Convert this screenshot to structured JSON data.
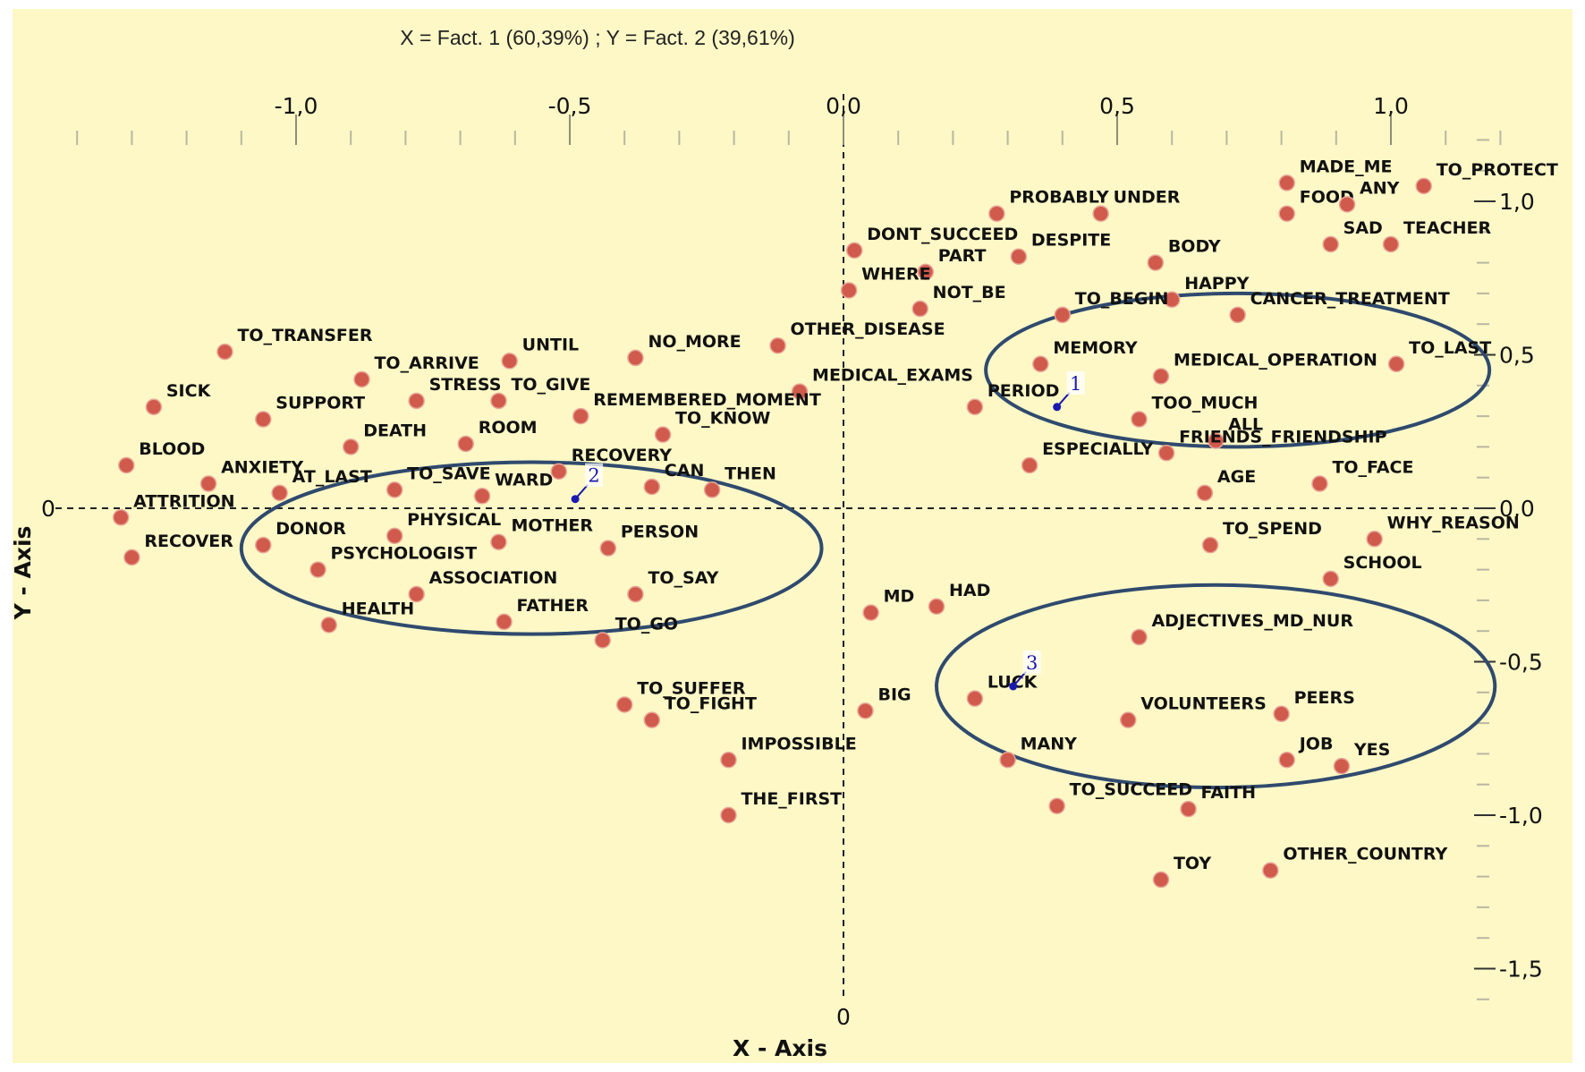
{
  "chart_data": {
    "type": "scatter",
    "title": "X = Fact. 1 (60,39%) ; Y = Fact. 2 (39,61%)",
    "xlabel": "X - Axis",
    "ylabel": "Y - Axis",
    "xlim": [
      -1.4,
      1.2
    ],
    "ylim": [
      -1.6,
      1.2
    ],
    "x_ticks": [
      {
        "value": -1.0,
        "label": "-1,0"
      },
      {
        "value": -0.5,
        "label": "-0,5"
      },
      {
        "value": 0.0,
        "label": "0,0"
      },
      {
        "value": 0.5,
        "label": "0,5"
      },
      {
        "value": 1.0,
        "label": "1,0"
      }
    ],
    "y_ticks": [
      {
        "value": 1.0,
        "label": "1,0"
      },
      {
        "value": 0.5,
        "label": "0,5"
      },
      {
        "value": 0.0,
        "label": "0,0"
      },
      {
        "value": -0.5,
        "label": "-0,5"
      },
      {
        "value": -1.0,
        "label": "-1,0"
      },
      {
        "value": -1.5,
        "label": "-1,5"
      }
    ],
    "origin_x_label": "0",
    "origin_y_label": "0",
    "grid": false,
    "colors": {
      "background": "#fdf8c6",
      "point": "#d05a4c",
      "centroid": "#1a1ab0",
      "ellipse": "#2f4a6e",
      "axis": "#222222"
    },
    "points": [
      {
        "label": "MADE_ME",
        "x": 0.81,
        "y": 1.06
      },
      {
        "label": "TO_PROTECT",
        "x": 1.06,
        "y": 1.05
      },
      {
        "label": "FOOD",
        "x": 0.81,
        "y": 0.96
      },
      {
        "label": "ANY",
        "x": 0.92,
        "y": 0.99
      },
      {
        "label": "PROBABLY",
        "x": 0.28,
        "y": 0.96
      },
      {
        "label": "UNDER",
        "x": 0.47,
        "y": 0.96
      },
      {
        "label": "SAD",
        "x": 0.89,
        "y": 0.86
      },
      {
        "label": "TEACHER",
        "x": 1.0,
        "y": 0.86
      },
      {
        "label": "DONT_SUCCEED",
        "x": 0.02,
        "y": 0.84
      },
      {
        "label": "DESPITE",
        "x": 0.32,
        "y": 0.82
      },
      {
        "label": "BODY",
        "x": 0.57,
        "y": 0.8
      },
      {
        "label": "PART",
        "x": 0.15,
        "y": 0.77
      },
      {
        "label": "HAPPY",
        "x": 0.6,
        "y": 0.68
      },
      {
        "label": "WHERE",
        "x": 0.01,
        "y": 0.71
      },
      {
        "label": "NOT_BE",
        "x": 0.14,
        "y": 0.65
      },
      {
        "label": "TO_BEGIN",
        "x": 0.4,
        "y": 0.63
      },
      {
        "label": "CANCER_TREATMENT",
        "x": 0.72,
        "y": 0.63
      },
      {
        "label": "TO_TRANSFER",
        "x": -1.13,
        "y": 0.51
      },
      {
        "label": "OTHER_DISEASE",
        "x": -0.12,
        "y": 0.53
      },
      {
        "label": "MEMORY",
        "x": 0.36,
        "y": 0.47
      },
      {
        "label": "TO_LAST",
        "x": 1.01,
        "y": 0.47
      },
      {
        "label": "NO_MORE",
        "x": -0.38,
        "y": 0.49
      },
      {
        "label": "UNTIL",
        "x": -0.61,
        "y": 0.48
      },
      {
        "label": "MEDICAL_OPERATION",
        "x": 0.58,
        "y": 0.43
      },
      {
        "label": "TO_ARRIVE",
        "x": -0.88,
        "y": 0.42
      },
      {
        "label": "MEDICAL_EXAMS",
        "x": -0.08,
        "y": 0.38
      },
      {
        "label": "SICK",
        "x": -1.26,
        "y": 0.33
      },
      {
        "label": "STRESS",
        "x": -0.78,
        "y": 0.35
      },
      {
        "label": "TO_GIVE",
        "x": -0.63,
        "y": 0.35
      },
      {
        "label": "PERIOD",
        "x": 0.24,
        "y": 0.33
      },
      {
        "label": "SUPPORT",
        "x": -1.06,
        "y": 0.29
      },
      {
        "label": "REMEMBERED_MOMENT",
        "x": -0.48,
        "y": 0.3
      },
      {
        "label": "TOO_MUCH",
        "x": 0.54,
        "y": 0.29
      },
      {
        "label": "TO_KNOW",
        "x": -0.33,
        "y": 0.24
      },
      {
        "label": "ALL",
        "x": 0.68,
        "y": 0.22
      },
      {
        "label": "DEATH",
        "x": -0.9,
        "y": 0.2
      },
      {
        "label": "ROOM",
        "x": -0.69,
        "y": 0.21
      },
      {
        "label": "FRIENDS_FRIENDSHIP",
        "x": 0.59,
        "y": 0.18
      },
      {
        "label": "BLOOD",
        "x": -1.31,
        "y": 0.14
      },
      {
        "label": "RECOVERY",
        "x": -0.52,
        "y": 0.12
      },
      {
        "label": "ESPECIALLY",
        "x": 0.34,
        "y": 0.14
      },
      {
        "label": "ANXIETY",
        "x": -1.16,
        "y": 0.08
      },
      {
        "label": "CAN",
        "x": -0.35,
        "y": 0.07
      },
      {
        "label": "THEN",
        "x": -0.24,
        "y": 0.06
      },
      {
        "label": "TO_SAVE",
        "x": -0.82,
        "y": 0.06
      },
      {
        "label": "AT_LAST",
        "x": -1.03,
        "y": 0.05
      },
      {
        "label": "WARD",
        "x": -0.66,
        "y": 0.04
      },
      {
        "label": "TO_FACE",
        "x": 0.87,
        "y": 0.08
      },
      {
        "label": "AGE",
        "x": 0.66,
        "y": 0.05
      },
      {
        "label": "ATTRITION",
        "x": -1.32,
        "y": -0.03
      },
      {
        "label": "RECOVER",
        "x": -1.3,
        "y": -0.16
      },
      {
        "label": "DONOR",
        "x": -1.06,
        "y": -0.12
      },
      {
        "label": "PHYSICAL",
        "x": -0.82,
        "y": -0.09
      },
      {
        "label": "MOTHER",
        "x": -0.63,
        "y": -0.11
      },
      {
        "label": "PERSON",
        "x": -0.43,
        "y": -0.13
      },
      {
        "label": "PSYCHOLOGIST",
        "x": -0.96,
        "y": -0.2
      },
      {
        "label": "TO_SPEND",
        "x": 0.67,
        "y": -0.12
      },
      {
        "label": "WHY_REASON",
        "x": 0.97,
        "y": -0.1
      },
      {
        "label": "SCHOOL",
        "x": 0.89,
        "y": -0.23
      },
      {
        "label": "TO_SAY",
        "x": -0.38,
        "y": -0.28
      },
      {
        "label": "ASSOCIATION",
        "x": -0.78,
        "y": -0.28
      },
      {
        "label": "MD",
        "x": 0.05,
        "y": -0.34
      },
      {
        "label": "HAD",
        "x": 0.17,
        "y": -0.32
      },
      {
        "label": "HEALTH",
        "x": -0.94,
        "y": -0.38
      },
      {
        "label": "FATHER",
        "x": -0.62,
        "y": -0.37
      },
      {
        "label": "TO_GO",
        "x": -0.44,
        "y": -0.43
      },
      {
        "label": "ADJECTIVES_MD_NUR",
        "x": 0.54,
        "y": -0.42
      },
      {
        "label": "TO_SUFFER",
        "x": -0.4,
        "y": -0.64
      },
      {
        "label": "TO_FIGHT",
        "x": -0.35,
        "y": -0.69
      },
      {
        "label": "BIG",
        "x": 0.04,
        "y": -0.66
      },
      {
        "label": "LUCK",
        "x": 0.24,
        "y": -0.62
      },
      {
        "label": "VOLUNTEERS",
        "x": 0.52,
        "y": -0.69
      },
      {
        "label": "PEERS",
        "x": 0.8,
        "y": -0.67
      },
      {
        "label": "IMPOSSIBLE",
        "x": -0.21,
        "y": -0.82
      },
      {
        "label": "MANY",
        "x": 0.3,
        "y": -0.82
      },
      {
        "label": "JOB",
        "x": 0.81,
        "y": -0.82
      },
      {
        "label": "YES",
        "x": 0.91,
        "y": -0.84
      },
      {
        "label": "TO_SUCCEED",
        "x": 0.39,
        "y": -0.97
      },
      {
        "label": "FAITH",
        "x": 0.63,
        "y": -0.98
      },
      {
        "label": "THE_FIRST",
        "x": -0.21,
        "y": -1.0
      },
      {
        "label": "TOY",
        "x": 0.58,
        "y": -1.21
      },
      {
        "label": "OTHER_COUNTRY",
        "x": 0.78,
        "y": -1.18
      }
    ],
    "centroids": [
      {
        "label": "1",
        "x": 0.39,
        "y": 0.33
      },
      {
        "label": "2",
        "x": -0.49,
        "y": 0.03
      },
      {
        "label": "3",
        "x": 0.31,
        "y": -0.58
      }
    ],
    "clusters": [
      {
        "cx": 0.72,
        "cy": 0.45,
        "rx": 0.46,
        "ry": 0.25
      },
      {
        "cx": -0.57,
        "cy": -0.13,
        "rx": 0.53,
        "ry": 0.28
      },
      {
        "cx": 0.68,
        "cy": -0.58,
        "rx": 0.51,
        "ry": 0.33
      }
    ]
  }
}
